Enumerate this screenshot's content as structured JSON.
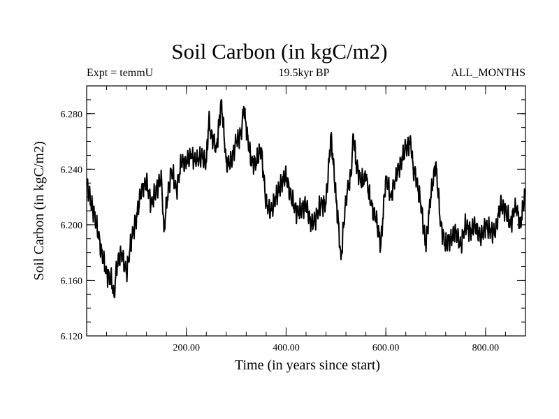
{
  "chart_data": {
    "type": "line",
    "title": "Soil Carbon (in kgC/m2)",
    "subtitle_left": "Expt = temmU",
    "subtitle_center": "19.5kyr BP",
    "subtitle_right": "ALL_MONTHS",
    "xlabel": "Time (in years since start)",
    "ylabel": "Soil Carbon (in kgC/m2)",
    "xlim": [
      0,
      880
    ],
    "ylim": [
      6.12,
      6.3
    ],
    "xticks": [
      200,
      400,
      600,
      800
    ],
    "xtick_labels": [
      "200.00",
      "400.00",
      "600.00",
      "800.00"
    ],
    "yticks": [
      6.12,
      6.16,
      6.2,
      6.24,
      6.28
    ],
    "ytick_labels": [
      "6.120",
      "6.160",
      "6.200",
      "6.240",
      "6.280"
    ],
    "series": [
      {
        "name": "Soil Carbon",
        "x": [
          0,
          10,
          20,
          30,
          40,
          50,
          55,
          60,
          70,
          80,
          90,
          100,
          110,
          120,
          130,
          140,
          150,
          155,
          160,
          170,
          180,
          190,
          200,
          210,
          220,
          230,
          240,
          245,
          250,
          260,
          265,
          270,
          280,
          290,
          300,
          310,
          315,
          320,
          330,
          340,
          350,
          360,
          370,
          380,
          390,
          400,
          410,
          420,
          430,
          440,
          450,
          460,
          470,
          480,
          490,
          500,
          505,
          510,
          520,
          530,
          535,
          540,
          550,
          560,
          570,
          580,
          590,
          600,
          610,
          620,
          630,
          640,
          650,
          655,
          660,
          670,
          680,
          690,
          700,
          710,
          720,
          730,
          740,
          750,
          760,
          770,
          780,
          790,
          800,
          810,
          820,
          830,
          840,
          850,
          860,
          870,
          880
        ],
        "y": [
          6.23,
          6.215,
          6.2,
          6.18,
          6.165,
          6.16,
          6.148,
          6.17,
          6.18,
          6.165,
          6.19,
          6.205,
          6.225,
          6.23,
          6.215,
          6.225,
          6.235,
          6.195,
          6.215,
          6.24,
          6.225,
          6.245,
          6.245,
          6.25,
          6.245,
          6.25,
          6.245,
          6.275,
          6.265,
          6.255,
          6.27,
          6.29,
          6.245,
          6.245,
          6.26,
          6.265,
          6.285,
          6.27,
          6.245,
          6.245,
          6.255,
          6.215,
          6.21,
          6.22,
          6.23,
          6.235,
          6.22,
          6.21,
          6.21,
          6.215,
          6.2,
          6.205,
          6.215,
          6.215,
          6.265,
          6.22,
          6.2,
          6.175,
          6.22,
          6.235,
          6.265,
          6.245,
          6.23,
          6.235,
          6.215,
          6.205,
          6.185,
          6.235,
          6.22,
          6.235,
          6.245,
          6.255,
          6.26,
          6.24,
          6.235,
          6.215,
          6.185,
          6.22,
          6.245,
          6.2,
          6.185,
          6.19,
          6.195,
          6.185,
          6.2,
          6.195,
          6.2,
          6.19,
          6.2,
          6.195,
          6.195,
          6.215,
          6.21,
          6.2,
          6.215,
          6.2,
          6.225
        ]
      }
    ]
  }
}
